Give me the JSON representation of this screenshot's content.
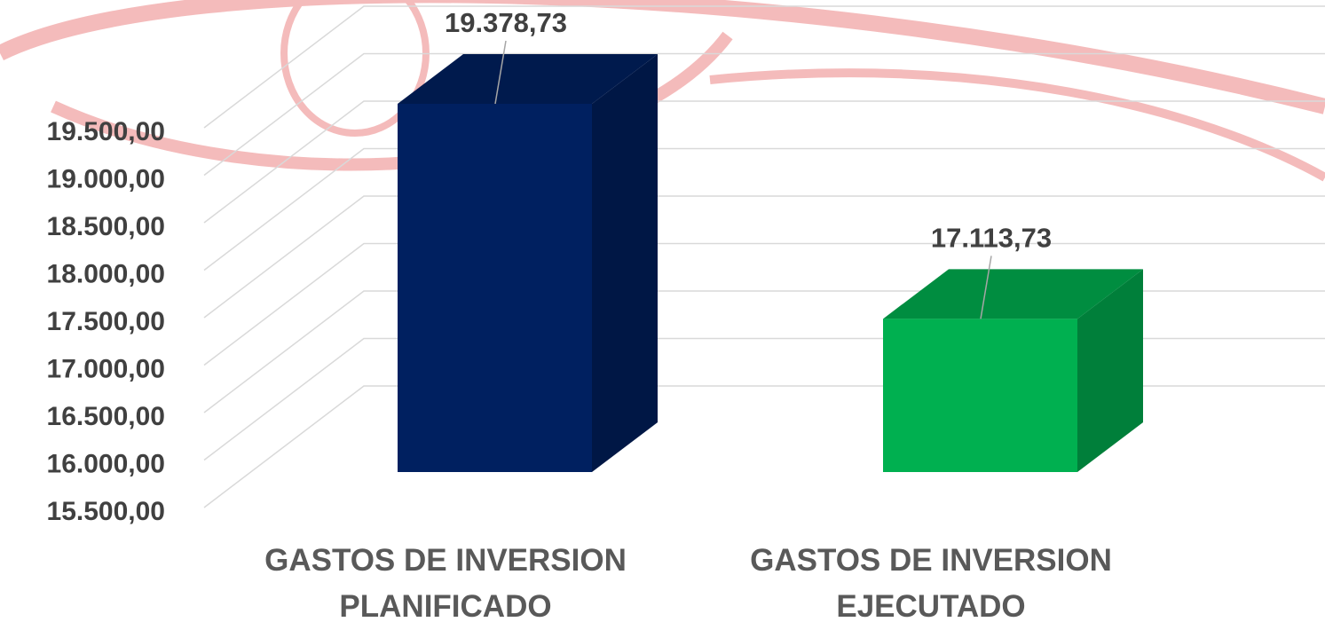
{
  "chart_data": {
    "type": "bar3d",
    "categories": [
      "GASTOS DE INVERSION PLANIFICADO",
      "GASTOS DE INVERSION EJECUTADO"
    ],
    "series": [
      {
        "values": [
          19378.73,
          17113.73
        ],
        "value_labels": [
          "19.378,73",
          "17.113,73"
        ],
        "colors": [
          "#002060",
          "#00b050"
        ]
      }
    ],
    "ylim": [
      15500,
      19500
    ],
    "yticks": [
      {
        "value": 15500,
        "label": "15.500,00"
      },
      {
        "value": 16000,
        "label": "16.000,00"
      },
      {
        "value": 16500,
        "label": "16.500,00"
      },
      {
        "value": 17000,
        "label": "17.000,00"
      },
      {
        "value": 17500,
        "label": "17.500,00"
      },
      {
        "value": 18000,
        "label": "18.000,00"
      },
      {
        "value": 18500,
        "label": "18.500,00"
      },
      {
        "value": 19000,
        "label": "19.000,00"
      },
      {
        "value": 19500,
        "label": "19.500,00"
      }
    ],
    "grid": true
  }
}
